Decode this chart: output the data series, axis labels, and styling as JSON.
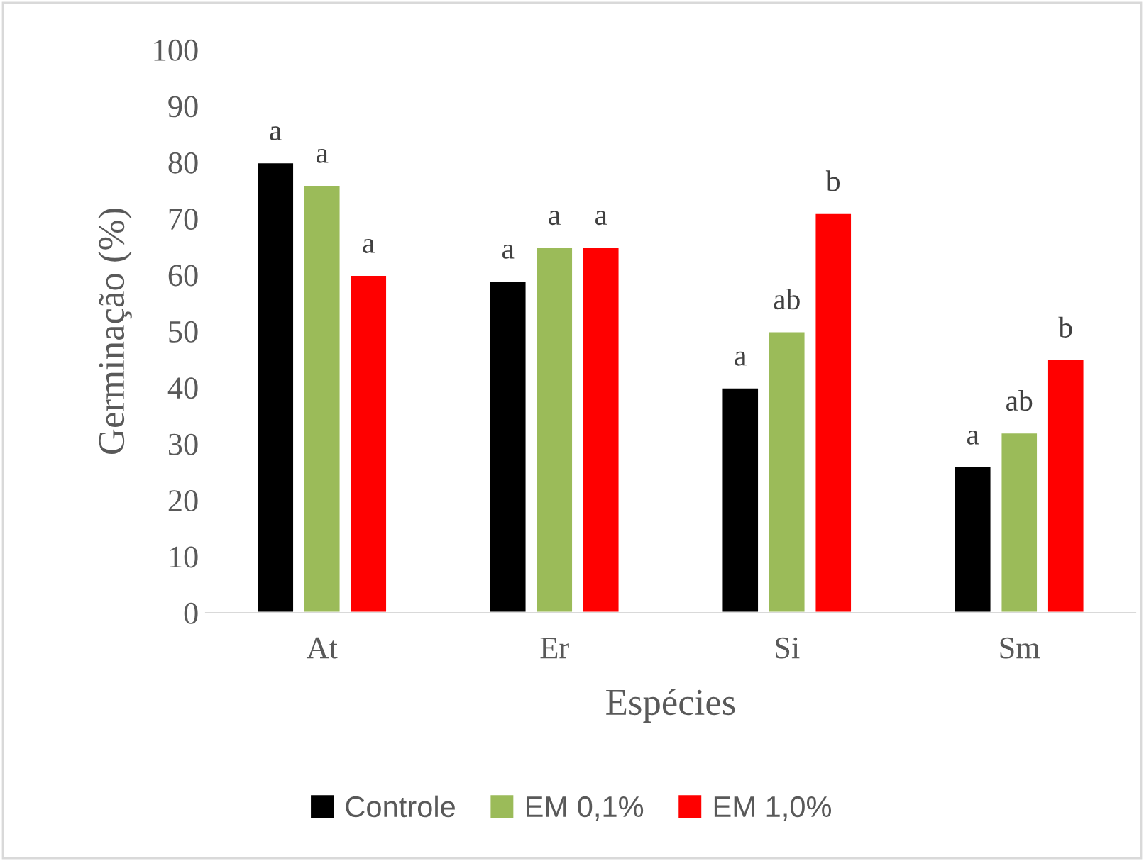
{
  "chart_data": {
    "type": "bar",
    "xlabel": "Espécies",
    "ylabel": "Germinação (%)",
    "categories": [
      "At",
      "Er",
      "Si",
      "Sm"
    ],
    "series": [
      {
        "name": "Controle",
        "color": "#000000",
        "values": [
          80,
          59,
          40,
          26
        ],
        "value_labels": [
          "a",
          "a",
          "a",
          "a"
        ]
      },
      {
        "name": "EM 0,1%",
        "color": "#9bbb59",
        "values": [
          76,
          65,
          50,
          32
        ],
        "value_labels": [
          "a",
          "a",
          "ab",
          "ab"
        ]
      },
      {
        "name": "EM 1,0%",
        "color": "#ff0000",
        "values": [
          60,
          65,
          71,
          45
        ],
        "value_labels": [
          "a",
          "a",
          "b",
          "b"
        ]
      }
    ],
    "ylim": [
      0,
      100
    ],
    "yticks": [
      0,
      10,
      20,
      30,
      40,
      50,
      60,
      70,
      80,
      90,
      100
    ],
    "grid": false,
    "legend": "bottom"
  }
}
